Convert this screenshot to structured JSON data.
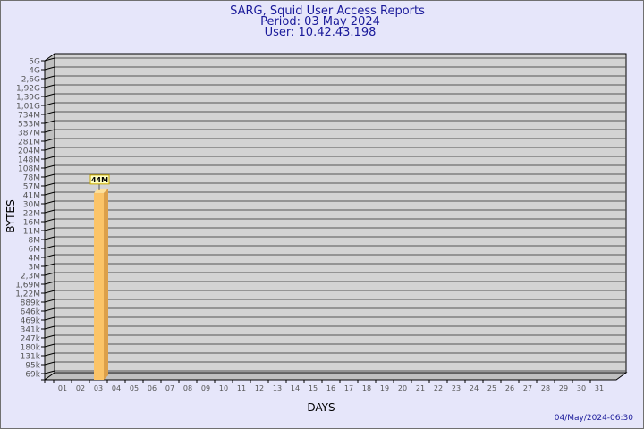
{
  "header": {
    "title": "SARG, Squid User Access Reports",
    "period": "Period: 03 May 2024",
    "user": "User: 10.42.43.198"
  },
  "footer": {
    "timestamp": "04/May/2024-06:30"
  },
  "colors": {
    "background": "#e6e6fa",
    "plot": "#d3d3d3",
    "bar": "#fbc468",
    "bar_side": "#dca04a",
    "title": "#1a1a9a"
  },
  "chart_data": {
    "type": "bar",
    "style": "3d",
    "xlabel": "DAYS",
    "ylabel": "BYTES",
    "y_scale": "log",
    "grid": true,
    "y_ticks": [
      "5G",
      "4G",
      "2,6G",
      "1,92G",
      "1,39G",
      "1,01G",
      "734M",
      "533M",
      "387M",
      "281M",
      "204M",
      "148M",
      "108M",
      "78M",
      "57M",
      "41M",
      "30M",
      "22M",
      "16M",
      "11M",
      "8M",
      "6M",
      "4M",
      "3M",
      "2,3M",
      "1,69M",
      "1,22M",
      "889k",
      "646k",
      "469k",
      "341k",
      "247k",
      "180k",
      "131k",
      "95k",
      "69k"
    ],
    "y_tick_values": [
      5000000000.0,
      4000000000.0,
      2600000000.0,
      1920000000.0,
      1390000000.0,
      1010000000.0,
      734000000.0,
      533000000.0,
      387000000.0,
      281000000.0,
      204000000.0,
      148000000.0,
      108000000.0,
      78000000.0,
      57000000.0,
      41000000.0,
      30000000.0,
      22000000.0,
      16000000.0,
      11000000.0,
      8000000.0,
      6000000.0,
      4000000.0,
      3000000.0,
      2300000.0,
      1690000.0,
      1220000.0,
      889000.0,
      646000.0,
      469000.0,
      341000.0,
      247000.0,
      180000.0,
      131000.0,
      95000.0,
      69000.0
    ],
    "categories": [
      "01",
      "02",
      "03",
      "04",
      "05",
      "06",
      "07",
      "08",
      "09",
      "10",
      "11",
      "12",
      "13",
      "14",
      "15",
      "16",
      "17",
      "18",
      "19",
      "20",
      "21",
      "22",
      "23",
      "24",
      "25",
      "26",
      "27",
      "28",
      "29",
      "30",
      "31"
    ],
    "bars": [
      {
        "category": "03",
        "value": 44000000,
        "label": "44M"
      }
    ]
  }
}
